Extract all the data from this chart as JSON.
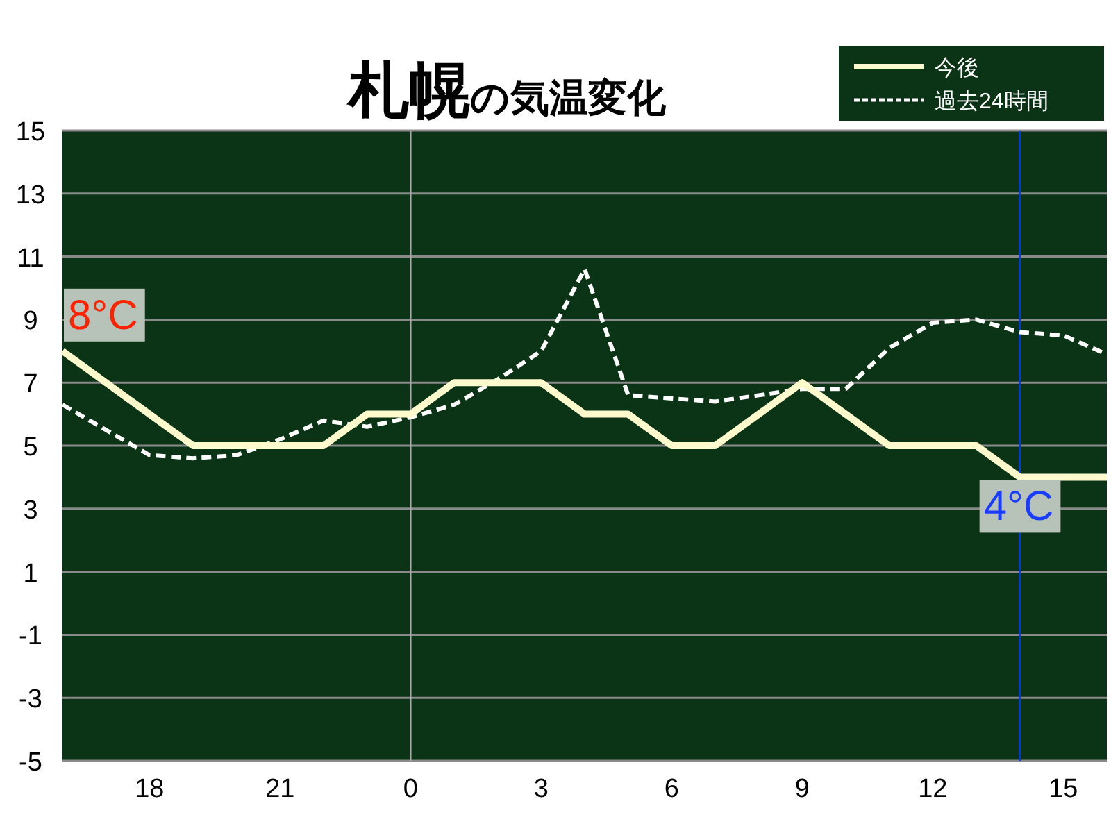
{
  "chart_data": {
    "type": "line",
    "title": "札幌の気温変化",
    "categories": [
      null,
      null,
      "18",
      null,
      null,
      "21",
      null,
      null,
      "0",
      null,
      null,
      "3",
      null,
      null,
      "6",
      null,
      null,
      "9",
      null,
      null,
      "12",
      null,
      null,
      "15",
      null
    ],
    "ylim": [
      -5,
      15
    ],
    "yticks": [
      -5,
      -3,
      -1,
      1,
      3,
      5,
      7,
      9,
      11,
      13,
      15
    ],
    "grid": "y",
    "legend": "top right",
    "series": [
      {
        "name": "今後",
        "color": "#fffacd",
        "line_style": "solid",
        "values": [
          8,
          7,
          6,
          5,
          5,
          5,
          5,
          6,
          6,
          7,
          7,
          7,
          6,
          6,
          5,
          5,
          6,
          7,
          6,
          5,
          5,
          5,
          4,
          4,
          4
        ]
      },
      {
        "name": "過去24時間",
        "color": "#ffffff",
        "line_style": "dashed",
        "values": [
          6.3,
          5.5,
          4.7,
          4.6,
          4.7,
          5.2,
          5.8,
          5.6,
          5.9,
          6.3,
          7.1,
          8.0,
          10.6,
          6.6,
          6.5,
          6.4,
          6.6,
          6.8,
          6.8,
          8.1,
          8.9,
          9.0,
          8.6,
          8.5,
          7.9
        ]
      }
    ],
    "ref_lines": [
      {
        "axis": "x",
        "value": "0",
        "color": "#aaaaaa"
      }
    ],
    "annotations": [
      "8°C",
      "4°C"
    ]
  }
}
